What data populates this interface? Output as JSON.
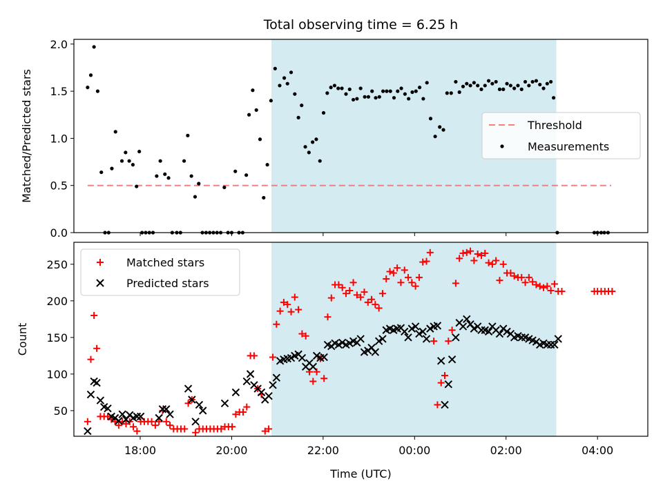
{
  "chart_data": [
    {
      "type": "scatter",
      "title": "Total observing time = 6.25 h",
      "ylabel": "Matched/Predicted stars",
      "xlabel": "",
      "ylim": [
        0,
        2.05
      ],
      "yticks": [
        "0.0",
        "0.5",
        "1.0",
        "1.5",
        "2.0"
      ],
      "shaded_region": {
        "x_start": 20.87,
        "x_end": 27.1,
        "color": "#add8e6"
      },
      "legend_position": "center-right",
      "series": [
        {
          "name": "Threshold",
          "style": "dashed-line",
          "color": "#f08080",
          "x": [
            16.85,
            28.3
          ],
          "y": [
            0.5,
            0.5
          ]
        },
        {
          "name": "Measurements",
          "style": "dots",
          "color": "#000000",
          "x": [
            16.85,
            16.92,
            16.99,
            17.07,
            17.15,
            17.23,
            17.31,
            17.38,
            17.46,
            17.6,
            17.68,
            17.76,
            17.84,
            17.92,
            17.98,
            18.04,
            18.12,
            18.2,
            18.28,
            18.36,
            18.44,
            18.54,
            18.62,
            18.7,
            18.8,
            18.88,
            18.96,
            19.04,
            19.12,
            19.2,
            19.28,
            19.36,
            19.44,
            19.52,
            19.6,
            19.68,
            19.76,
            19.84,
            19.92,
            20.0,
            20.08,
            20.16,
            20.24,
            20.32,
            20.38,
            20.46,
            20.54,
            20.62,
            20.7,
            20.78,
            20.86,
            20.95,
            21.05,
            21.15,
            21.22,
            21.3,
            21.38,
            21.46,
            21.53,
            21.61,
            21.69,
            21.77,
            21.85,
            21.93,
            22.01,
            22.09,
            22.17,
            22.25,
            22.33,
            22.41,
            22.5,
            22.58,
            22.66,
            22.74,
            22.82,
            22.91,
            22.99,
            23.07,
            23.15,
            23.23,
            23.31,
            23.39,
            23.47,
            23.55,
            23.63,
            23.71,
            23.79,
            23.87,
            23.95,
            24.03,
            24.11,
            24.19,
            24.27,
            24.35,
            24.45,
            24.55,
            24.63,
            24.71,
            24.8,
            24.9,
            24.98,
            25.06,
            25.14,
            25.22,
            25.3,
            25.38,
            25.46,
            25.54,
            25.62,
            25.7,
            25.78,
            25.86,
            25.94,
            26.02,
            26.1,
            26.18,
            26.26,
            26.34,
            26.42,
            26.5,
            26.58,
            26.66,
            26.74,
            26.82,
            26.9,
            26.98,
            27.04,
            27.12,
            27.93,
            28.0,
            28.08,
            28.15,
            28.23
          ],
          "y": [
            1.54,
            1.67,
            1.97,
            1.5,
            0.64,
            0,
            0,
            0.68,
            1.07,
            0.76,
            0.85,
            0.76,
            0.72,
            0.49,
            0.86,
            0,
            0,
            0,
            0,
            0.6,
            0.76,
            0.62,
            0.58,
            0,
            0,
            0,
            0.76,
            1.03,
            0.6,
            0.38,
            0.52,
            0,
            0,
            0,
            0,
            0,
            0,
            0.48,
            0,
            0,
            0.65,
            0,
            0,
            0.61,
            1.25,
            1.51,
            1.3,
            0.99,
            0.37,
            0.72,
            1.4,
            1.74,
            1.56,
            1.64,
            1.58,
            1.7,
            1.47,
            1.22,
            1.35,
            0.91,
            0.85,
            0.96,
            0.99,
            0.76,
            1.27,
            1.48,
            1.54,
            1.56,
            1.53,
            1.53,
            1.47,
            1.52,
            1.41,
            1.42,
            1.53,
            1.44,
            1.44,
            1.5,
            1.43,
            1.44,
            1.5,
            1.5,
            1.5,
            1.43,
            1.5,
            1.53,
            1.47,
            1.42,
            1.49,
            1.5,
            1.54,
            1.42,
            1.59,
            1.21,
            1.02,
            1.12,
            1.09,
            1.48,
            1.48,
            1.6,
            1.49,
            1.55,
            1.58,
            1.56,
            1.59,
            1.56,
            1.52,
            1.56,
            1.61,
            1.58,
            1.6,
            1.52,
            1.52,
            1.58,
            1.56,
            1.53,
            1.56,
            1.52,
            1.6,
            1.56,
            1.6,
            1.61,
            1.57,
            1.53,
            1.58,
            1.6,
            1.43,
            0,
            0,
            0,
            0,
            0,
            0
          ]
        }
      ]
    },
    {
      "type": "scatter",
      "title": "",
      "xlabel": "Time (UTC)",
      "ylabel": "Count",
      "ylim": [
        15,
        280
      ],
      "xlim": [
        16.55,
        29.1
      ],
      "yticks": [
        "50",
        "100",
        "150",
        "200",
        "250"
      ],
      "xticks": [
        {
          "value": 18,
          "label": "18:00"
        },
        {
          "value": 20,
          "label": "20:00"
        },
        {
          "value": 22,
          "label": "22:00"
        },
        {
          "value": 24,
          "label": "00:00"
        },
        {
          "value": 26,
          "label": "02:00"
        },
        {
          "value": 28,
          "label": "04:00"
        }
      ],
      "shaded_region": {
        "x_start": 20.87,
        "x_end": 27.1,
        "color": "#add8e6"
      },
      "legend_position": "top-left",
      "series": [
        {
          "name": "Matched stars",
          "marker": "+",
          "color": "#ff0000",
          "x": [
            16.85,
            16.92,
            16.99,
            17.05,
            17.13,
            17.21,
            17.29,
            17.37,
            17.45,
            17.53,
            17.61,
            17.69,
            17.77,
            17.85,
            17.93,
            18.01,
            18.09,
            18.17,
            18.25,
            18.33,
            18.41,
            18.49,
            18.57,
            18.65,
            18.73,
            18.81,
            18.89,
            18.97,
            19.05,
            19.13,
            19.21,
            19.29,
            19.37,
            19.45,
            19.53,
            19.61,
            19.69,
            19.77,
            19.85,
            19.93,
            20.01,
            20.09,
            20.17,
            20.25,
            20.33,
            20.41,
            20.49,
            20.57,
            20.65,
            20.73,
            20.81,
            20.9,
            20.98,
            21.06,
            21.14,
            21.22,
            21.3,
            21.38,
            21.46,
            21.54,
            21.62,
            21.7,
            21.78,
            21.86,
            21.94,
            22.02,
            22.1,
            22.18,
            22.26,
            22.34,
            22.42,
            22.5,
            22.58,
            22.66,
            22.74,
            22.82,
            22.9,
            22.98,
            23.06,
            23.14,
            23.22,
            23.3,
            23.38,
            23.46,
            23.54,
            23.62,
            23.7,
            23.78,
            23.86,
            23.94,
            24.02,
            24.1,
            24.18,
            24.26,
            24.34,
            24.42,
            24.5,
            24.58,
            24.66,
            24.74,
            24.82,
            24.9,
            24.98,
            25.06,
            25.14,
            25.22,
            25.3,
            25.38,
            25.46,
            25.54,
            25.62,
            25.7,
            25.78,
            25.86,
            25.94,
            26.02,
            26.1,
            26.18,
            26.26,
            26.34,
            26.42,
            26.5,
            26.58,
            26.66,
            26.74,
            26.82,
            26.9,
            26.98,
            27.06,
            27.14,
            27.22,
            27.93,
            28.0,
            28.08,
            28.16,
            28.24,
            28.32
          ],
          "y": [
            35,
            120,
            180,
            135,
            42,
            42,
            42,
            38,
            35,
            30,
            35,
            32,
            35,
            28,
            22,
            35,
            35,
            35,
            35,
            30,
            35,
            50,
            35,
            30,
            25,
            25,
            25,
            25,
            60,
            65,
            20,
            25,
            25,
            25,
            25,
            25,
            25,
            25,
            28,
            28,
            28,
            45,
            48,
            48,
            55,
            125,
            125,
            80,
            72,
            22,
            25,
            123,
            168,
            186,
            198,
            195,
            185,
            205,
            188,
            155,
            152,
            103,
            90,
            103,
            121,
            94,
            178,
            204,
            222,
            222,
            218,
            210,
            214,
            225,
            208,
            205,
            212,
            198,
            202,
            195,
            190,
            210,
            230,
            240,
            238,
            245,
            225,
            242,
            232,
            225,
            220,
            232,
            253,
            254,
            266,
            145,
            58,
            88,
            98,
            145,
            160,
            224,
            258,
            265,
            266,
            268,
            255,
            264,
            262,
            265,
            252,
            250,
            255,
            228,
            250,
            238,
            238,
            234,
            232,
            232,
            225,
            232,
            226,
            222,
            220,
            218,
            220,
            214,
            223,
            213,
            213,
            213,
            213,
            213,
            213,
            213,
            213
          ]
        },
        {
          "name": "Predicted stars",
          "marker": "x",
          "color": "#000000",
          "x": [
            16.85,
            16.92,
            16.99,
            17.05,
            17.13,
            17.21,
            17.29,
            17.37,
            17.45,
            17.53,
            17.61,
            17.69,
            17.77,
            17.85,
            17.93,
            18.01,
            18.41,
            18.49,
            18.57,
            18.65,
            19.05,
            19.13,
            19.21,
            19.29,
            19.37,
            19.85,
            20.09,
            20.33,
            20.41,
            20.49,
            20.57,
            20.65,
            20.73,
            20.81,
            20.9,
            20.98,
            21.06,
            21.14,
            21.22,
            21.3,
            21.38,
            21.46,
            21.54,
            21.62,
            21.7,
            21.78,
            21.86,
            21.94,
            22.02,
            22.1,
            22.18,
            22.26,
            22.34,
            22.42,
            22.5,
            22.58,
            22.66,
            22.74,
            22.82,
            22.9,
            22.98,
            23.06,
            23.14,
            23.22,
            23.3,
            23.38,
            23.46,
            23.54,
            23.62,
            23.7,
            23.78,
            23.86,
            23.94,
            24.02,
            24.1,
            24.18,
            24.26,
            24.34,
            24.42,
            24.5,
            24.58,
            24.66,
            24.74,
            24.82,
            24.9,
            24.98,
            25.06,
            25.14,
            25.22,
            25.3,
            25.38,
            25.46,
            25.54,
            25.62,
            25.7,
            25.78,
            25.86,
            25.94,
            26.02,
            26.1,
            26.18,
            26.26,
            26.34,
            26.42,
            26.5,
            26.58,
            26.66,
            26.74,
            26.82,
            26.9,
            26.98,
            27.06
          ],
          "y": [
            22,
            72,
            90,
            88,
            64,
            55,
            53,
            42,
            40,
            36,
            45,
            38,
            44,
            40,
            42,
            42,
            40,
            52,
            52,
            45,
            80,
            65,
            35,
            58,
            50,
            60,
            75,
            90,
            100,
            85,
            80,
            75,
            65,
            70,
            85,
            95,
            118,
            120,
            121,
            122,
            125,
            127,
            122,
            110,
            115,
            110,
            125,
            122,
            123,
            140,
            138,
            142,
            140,
            143,
            140,
            142,
            145,
            143,
            148,
            130,
            132,
            136,
            130,
            145,
            148,
            160,
            162,
            160,
            162,
            163,
            158,
            150,
            162,
            165,
            155,
            158,
            148,
            162,
            165,
            166,
            118,
            58,
            86,
            120,
            150,
            170,
            165,
            175,
            168,
            162,
            165,
            160,
            160,
            158,
            165,
            160,
            155,
            162,
            158,
            155,
            150,
            152,
            150,
            150,
            148,
            146,
            144,
            140,
            142,
            140,
            140,
            140
          ],
          "extra_x": [
            27.14
          ],
          "extra_y": [
            148
          ]
        }
      ]
    }
  ]
}
